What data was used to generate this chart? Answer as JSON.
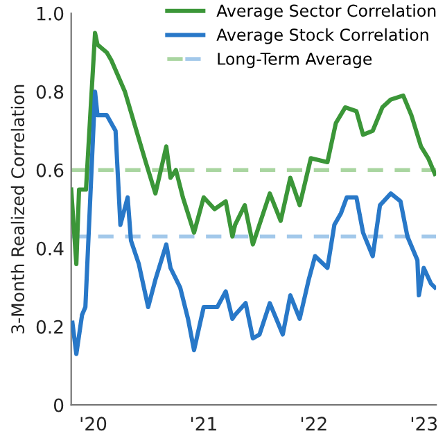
{
  "chart_data": {
    "type": "line",
    "ylabel": "3-Month Realized Correlation",
    "xlim": [
      "2019-10-20",
      "2023-02-10"
    ],
    "ylim": [
      0,
      1.0
    ],
    "xticks": [
      {
        "value": "2020-01-01",
        "label": "'20"
      },
      {
        "value": "2021-01-01",
        "label": "'21"
      },
      {
        "value": "2022-01-01",
        "label": "'22"
      },
      {
        "value": "2023-01-01",
        "label": "'23"
      }
    ],
    "yticks": [
      {
        "value": 0,
        "label": "0"
      },
      {
        "value": 0.2,
        "label": "0.2"
      },
      {
        "value": 0.4,
        "label": "0.4"
      },
      {
        "value": 0.6,
        "label": "0.6"
      },
      {
        "value": 0.8,
        "label": "0.8"
      },
      {
        "value": 1.0,
        "label": "1.0"
      }
    ],
    "grid": false,
    "legend": "top right",
    "line_style": "solid",
    "series": [
      {
        "name": "Average Sector Correlation",
        "color": "#3b9638",
        "x": [
          "2019-10-20",
          "2019-11-06",
          "2019-11-15",
          "2019-12-08",
          "2020-01-07",
          "2020-01-15",
          "2020-02-15",
          "2020-03-01",
          "2020-04-15",
          "2020-05-31",
          "2020-06-23",
          "2020-07-25",
          "2020-08-30",
          "2020-09-13",
          "2020-10-01",
          "2020-10-24",
          "2020-11-30",
          "2021-01-01",
          "2021-02-06",
          "2021-03-15",
          "2021-04-06",
          "2021-04-15",
          "2021-05-17",
          "2021-06-13",
          "2021-08-08",
          "2021-09-13",
          "2021-10-15",
          "2021-11-15",
          "2021-12-22",
          "2022-02-15",
          "2022-03-15",
          "2022-04-15",
          "2022-05-22",
          "2022-06-13",
          "2022-07-15",
          "2022-08-16",
          "2022-09-13",
          "2022-10-24",
          "2022-11-20",
          "2022-12-22",
          "2023-01-15",
          "2023-02-06"
        ],
        "values": [
          0.55,
          0.36,
          0.55,
          0.55,
          0.95,
          0.92,
          0.9,
          0.88,
          0.8,
          0.68,
          0.62,
          0.54,
          0.66,
          0.58,
          0.6,
          0.53,
          0.44,
          0.53,
          0.5,
          0.52,
          0.43,
          0.46,
          0.51,
          0.41,
          0.54,
          0.47,
          0.58,
          0.51,
          0.63,
          0.62,
          0.72,
          0.76,
          0.75,
          0.69,
          0.7,
          0.76,
          0.78,
          0.79,
          0.74,
          0.66,
          0.63,
          0.59
        ]
      },
      {
        "name": "Average Stock Correlation",
        "color": "#2878c8",
        "x": [
          "2019-10-24",
          "2019-11-06",
          "2019-11-25",
          "2019-12-06",
          "2020-01-07",
          "2020-01-15",
          "2020-02-15",
          "2020-03-15",
          "2020-03-31",
          "2020-04-24",
          "2020-05-05",
          "2020-05-31",
          "2020-07-01",
          "2020-07-25",
          "2020-08-30",
          "2020-09-13",
          "2020-10-15",
          "2020-11-10",
          "2020-11-30",
          "2021-01-01",
          "2021-02-15",
          "2021-03-15",
          "2021-04-06",
          "2021-04-15",
          "2021-05-20",
          "2021-06-13",
          "2021-07-05",
          "2021-08-08",
          "2021-09-20",
          "2021-10-15",
          "2021-11-15",
          "2021-12-15",
          "2022-01-05",
          "2022-02-15",
          "2022-03-10",
          "2022-04-01",
          "2022-04-20",
          "2022-05-22",
          "2022-06-13",
          "2022-07-15",
          "2022-08-08",
          "2022-09-13",
          "2022-10-15",
          "2022-11-07",
          "2022-12-10",
          "2022-12-15",
          "2022-12-31",
          "2023-01-24",
          "2023-02-06"
        ],
        "values": [
          0.21,
          0.13,
          0.23,
          0.25,
          0.8,
          0.74,
          0.74,
          0.7,
          0.46,
          0.53,
          0.42,
          0.36,
          0.25,
          0.32,
          0.41,
          0.35,
          0.3,
          0.22,
          0.14,
          0.25,
          0.25,
          0.29,
          0.22,
          0.23,
          0.26,
          0.17,
          0.18,
          0.26,
          0.18,
          0.28,
          0.22,
          0.32,
          0.38,
          0.35,
          0.46,
          0.49,
          0.53,
          0.53,
          0.44,
          0.38,
          0.51,
          0.54,
          0.52,
          0.43,
          0.37,
          0.28,
          0.35,
          0.31,
          0.3
        ]
      }
    ],
    "ref_lines": [
      {
        "axis": "y",
        "value": 0.6,
        "label": "Long-Term Average",
        "color": "#a9d5a0",
        "line_style": "dashed"
      },
      {
        "axis": "y",
        "value": 0.43,
        "color": "#a2c8ea",
        "line_style": "dashed"
      }
    ]
  }
}
